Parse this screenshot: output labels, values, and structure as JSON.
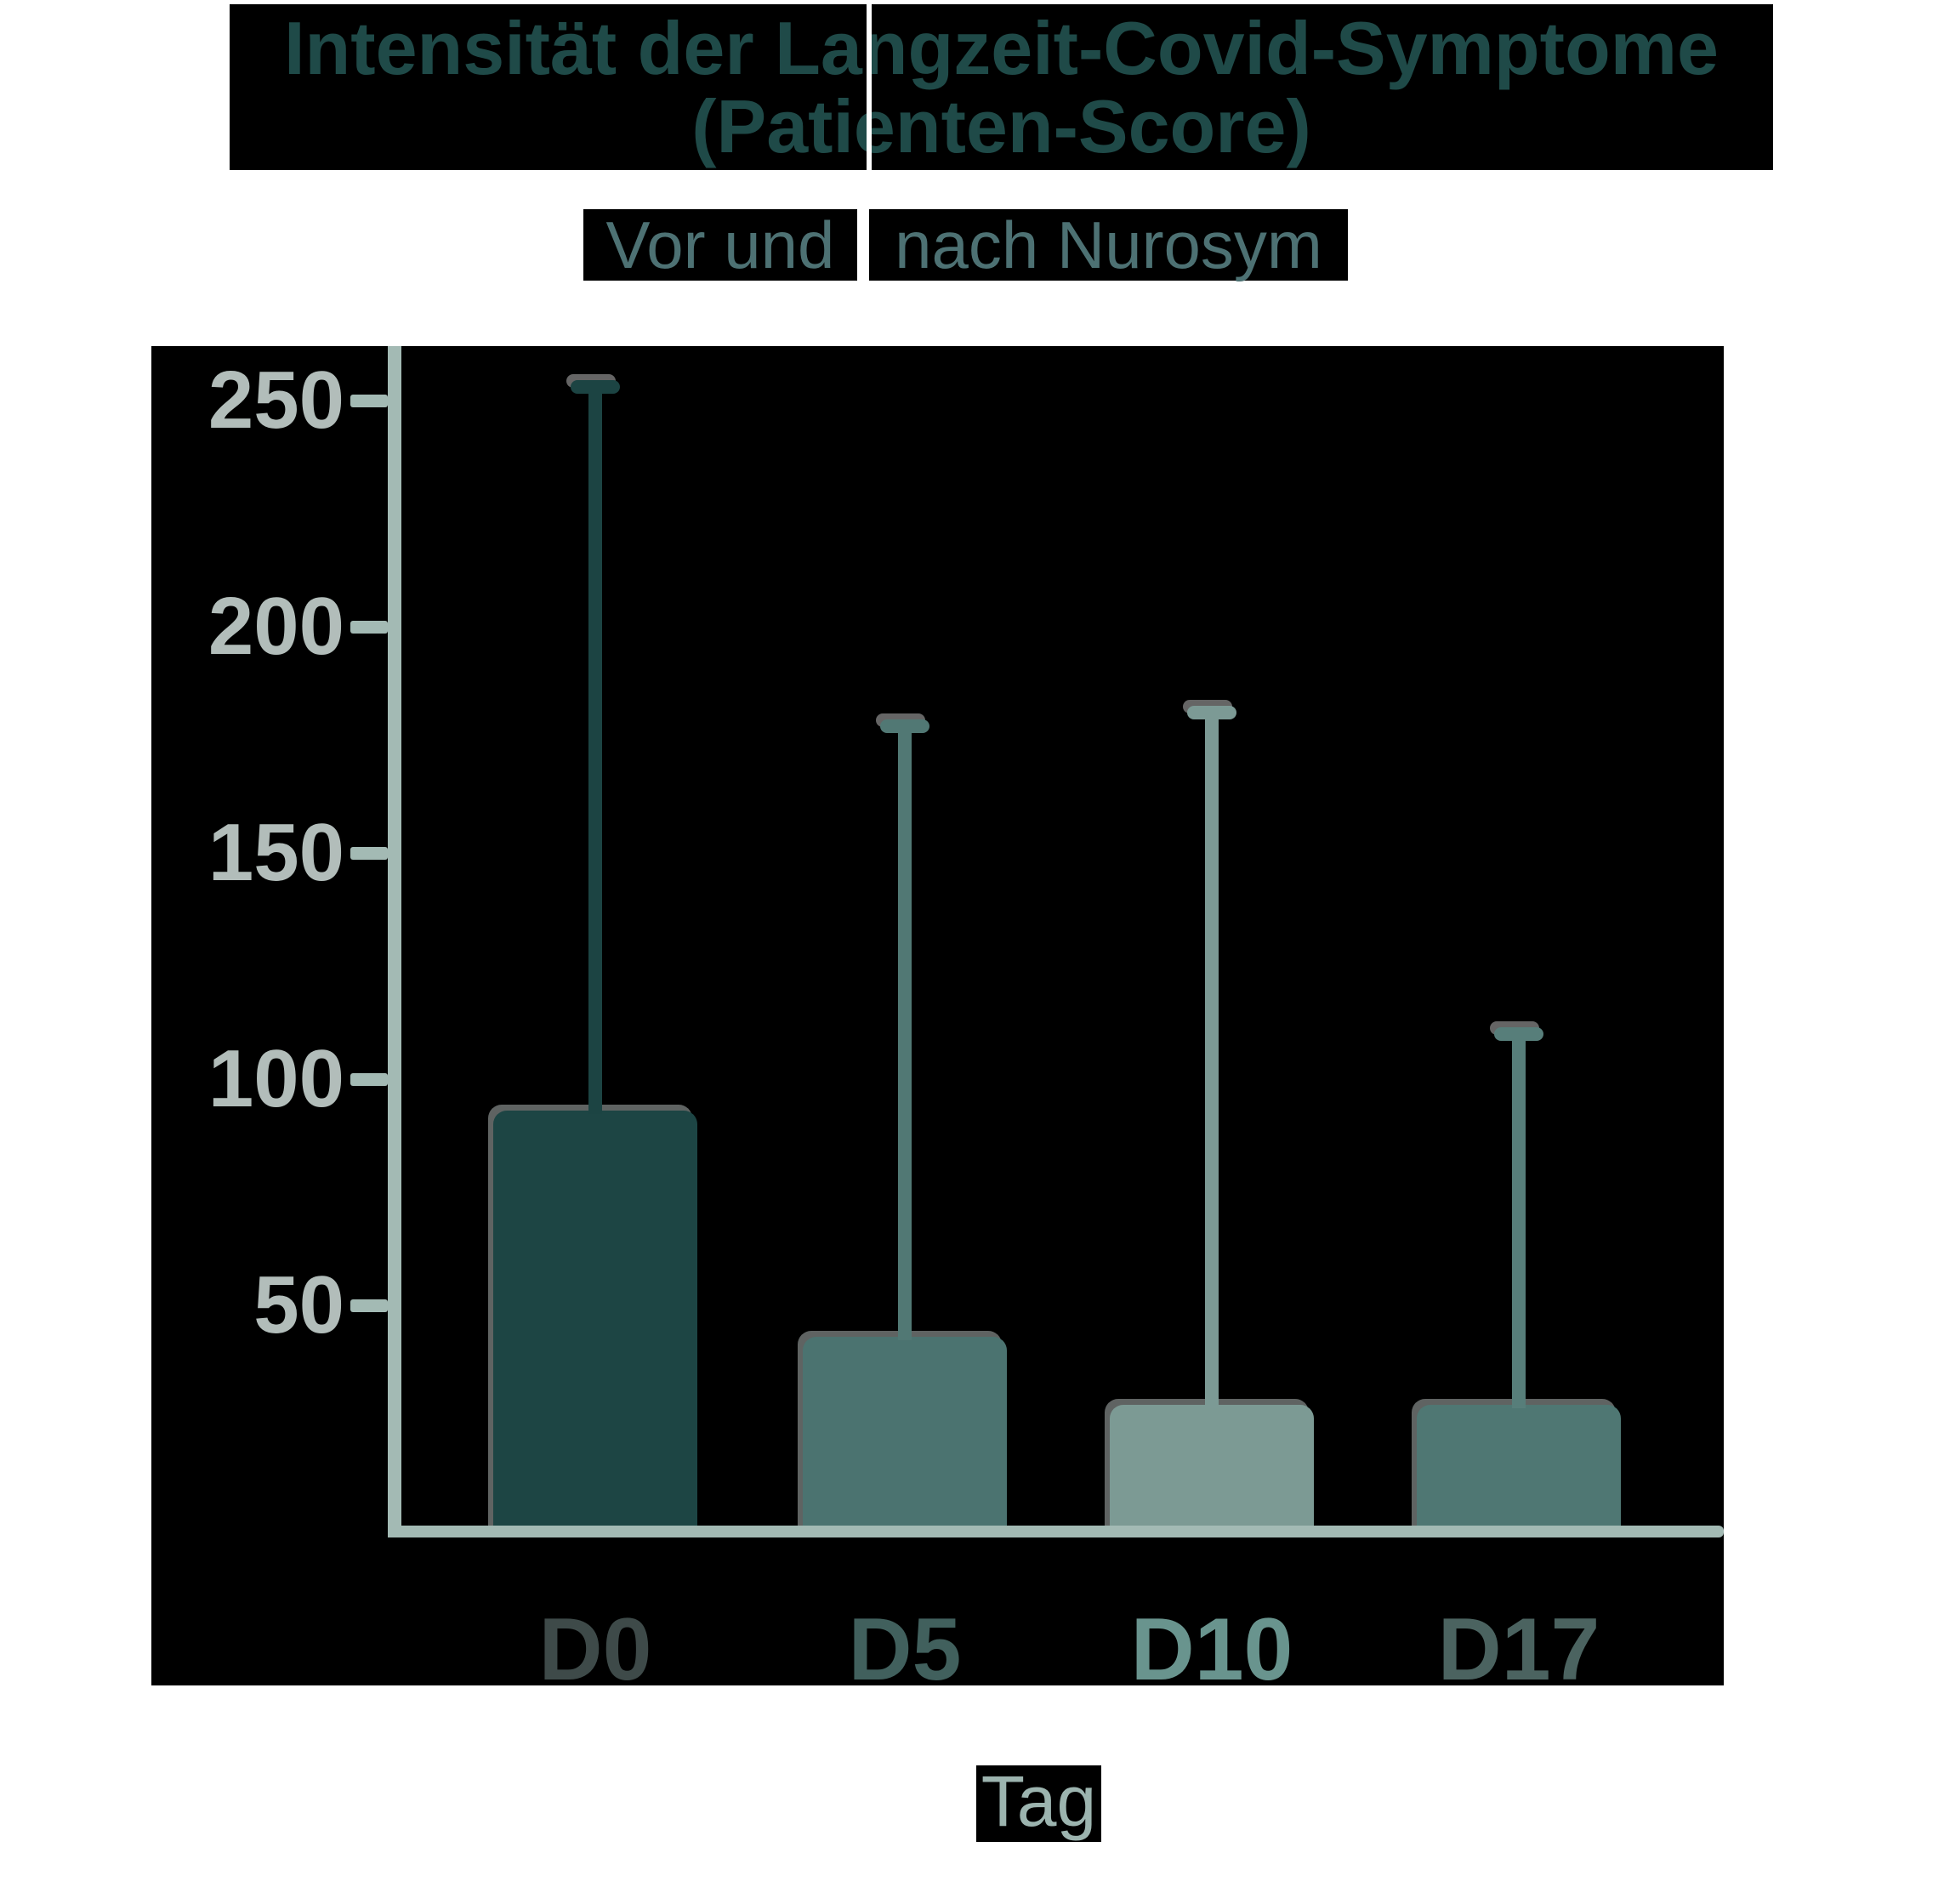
{
  "title": {
    "line1": "Intensität der Langzeit-Covid-Symptome",
    "line2": "(Patienten-Score)",
    "color": "#1f4a48"
  },
  "subtitle": {
    "full": "Vor und nach Nurosym",
    "part1": "Vor und",
    "part2": "nach Nurosym",
    "color": "#4d7173"
  },
  "x_axis_title": "Tag",
  "colors": {
    "background": "#ffffff",
    "panel": "#000000",
    "axis": "#a3bab4",
    "tick_label": "#b2bdba",
    "x_axis_title": "#9cb4af",
    "edge_shadow": "#707473"
  },
  "chart_data": {
    "type": "bar",
    "title": "Intensität der Langzeit-Covid-Symptome (Patienten-Score)",
    "subtitle": "Vor und nach Nurosym",
    "xlabel": "Tag",
    "ylabel": "",
    "categories": [
      "D0",
      "D5",
      "D10",
      "D17"
    ],
    "values": [
      93,
      43,
      28,
      28
    ],
    "error_bar_tops": [
      253,
      178,
      181,
      110
    ],
    "yticks": [
      50,
      100,
      150,
      200,
      250
    ],
    "ylim": [
      0,
      262
    ],
    "grid": false,
    "legend": false,
    "bar_colors": [
      "#1d4544",
      "#4b7370",
      "#7c9a94",
      "#4f7773"
    ],
    "whisker_colors": [
      "#1c4443",
      "#517874",
      "#7c9a95",
      "#577e7a"
    ],
    "category_label_colors": [
      "#3e4a49",
      "#41605d",
      "#69948e",
      "#4b6360"
    ]
  }
}
